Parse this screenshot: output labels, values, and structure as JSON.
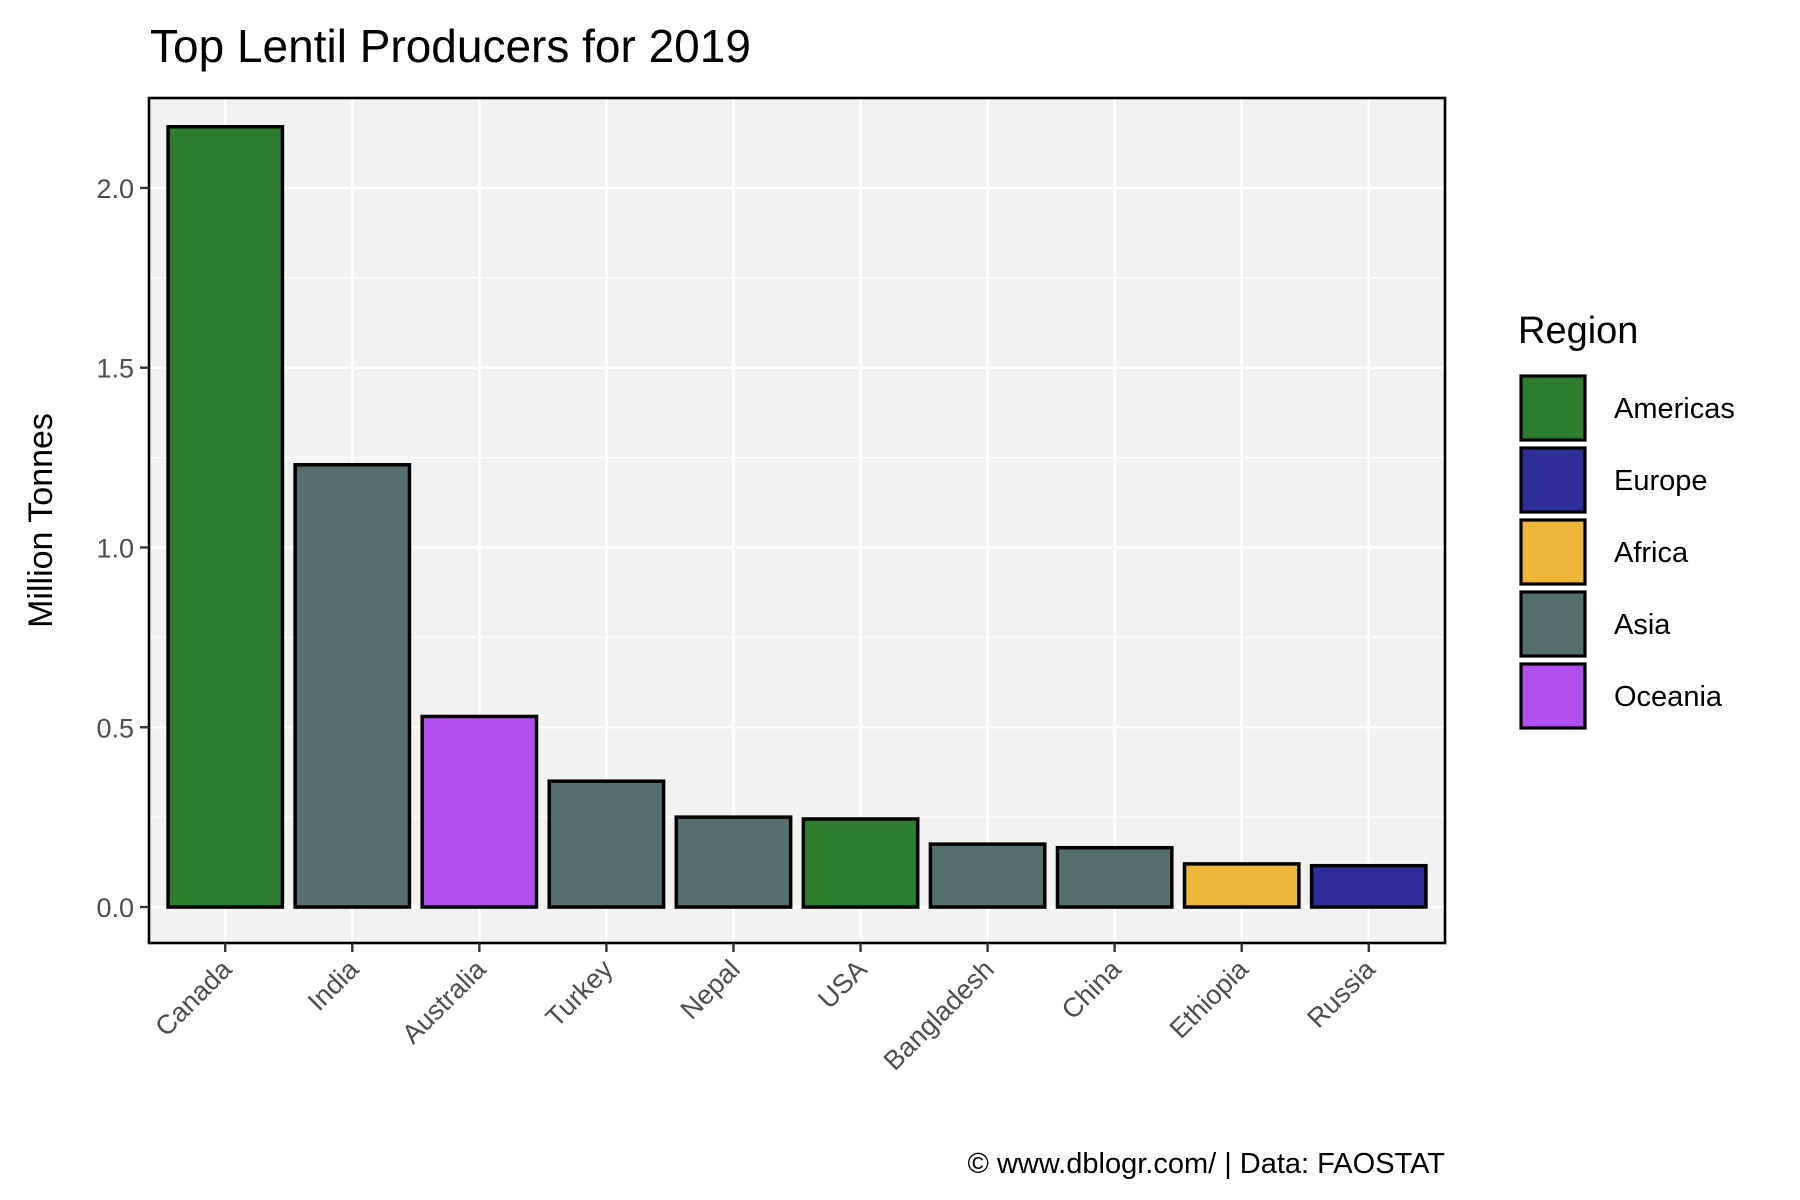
{
  "chart_data": {
    "type": "bar",
    "title": "Top Lentil Producers for 2019",
    "xlabel": "",
    "ylabel": "Million Tonnes",
    "ylim": [
      -0.1,
      2.25
    ],
    "yticks": [
      "0.0",
      "0.5",
      "1.0",
      "1.5",
      "2.0"
    ],
    "ytick_values": [
      0.0,
      0.5,
      1.0,
      1.5,
      2.0
    ],
    "grid": true,
    "categories": [
      "Canada",
      "India",
      "Australia",
      "Turkey",
      "Nepal",
      "USA",
      "Bangladesh",
      "China",
      "Ethiopia",
      "Russia"
    ],
    "values": [
      2.17,
      1.23,
      0.53,
      0.35,
      0.25,
      0.245,
      0.175,
      0.165,
      0.12,
      0.115
    ],
    "regions": [
      "Americas",
      "Asia",
      "Oceania",
      "Asia",
      "Asia",
      "Americas",
      "Asia",
      "Asia",
      "Africa",
      "Europe"
    ],
    "legend": {
      "title": "Region",
      "placement": "right",
      "entries": [
        {
          "label": "Americas",
          "color": "#2e7d2e"
        },
        {
          "label": "Europe",
          "color": "#2e2e9a"
        },
        {
          "label": "Africa",
          "color": "#eeb73a"
        },
        {
          "label": "Asia",
          "color": "#556e6e"
        },
        {
          "label": "Oceania",
          "color": "#b04ef0"
        }
      ]
    },
    "caption": "© www.dblogr.com/  |  Data: FAOSTAT"
  }
}
